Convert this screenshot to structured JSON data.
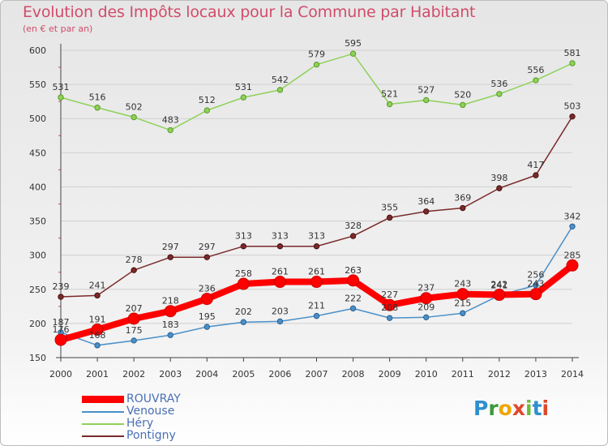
{
  "title": "Evolution des Impôts locaux pour la Commune par Habitant",
  "subtitle": "(en € et par an)",
  "logo": {
    "letters": [
      "P",
      "r",
      "o",
      "x",
      "i",
      "t",
      "i"
    ],
    "colors": [
      "#2f8fcf",
      "#3a9a3a",
      "#f0a500",
      "#e0472b",
      "#6dbb3c",
      "#2f8fcf",
      "#e0472b"
    ]
  },
  "chart_data": {
    "type": "line",
    "x": [
      "2000",
      "2001",
      "2002",
      "2003",
      "2004",
      "2005",
      "2006",
      "2007",
      "2008",
      "2009",
      "2010",
      "2011",
      "2012",
      "2013",
      "2014"
    ],
    "ylim": [
      150,
      600
    ],
    "yticks": [
      150,
      200,
      250,
      300,
      350,
      400,
      450,
      500,
      550,
      600
    ],
    "grid": "horizontal",
    "legend_position": "bottom-left",
    "series": [
      {
        "name": "ROUVRAY",
        "color": "#ff0000",
        "values": [
          176,
          191,
          207,
          218,
          236,
          258,
          261,
          261,
          263,
          227,
          237,
          243,
          242,
          243,
          285
        ],
        "labels": [
          "176",
          "191",
          "207",
          "218",
          "236",
          "258",
          "261",
          "261",
          "263",
          "227",
          "237",
          "243",
          "242",
          "243",
          "285"
        ]
      },
      {
        "name": "Venouse",
        "color": "#4a90c8",
        "values": [
          187,
          168,
          175,
          183,
          195,
          202,
          203,
          211,
          222,
          208,
          209,
          215,
          241,
          256,
          342
        ],
        "labels": [
          "187",
          "168",
          "175",
          "183",
          "195",
          "202",
          "203",
          "211",
          "222",
          "208",
          "209",
          "215",
          "241",
          "256",
          "342"
        ]
      },
      {
        "name": "Héry",
        "color": "#8ed158",
        "values": [
          531,
          516,
          502,
          483,
          512,
          531,
          542,
          579,
          595,
          521,
          527,
          520,
          536,
          556,
          581
        ],
        "labels": [
          "531",
          "516",
          "502",
          "483",
          "512",
          "531",
          "542",
          "579",
          "595",
          "521",
          "527",
          "520",
          "536",
          "556",
          "581"
        ]
      },
      {
        "name": "Pontigny",
        "color": "#7a2a2a",
        "values": [
          239,
          241,
          278,
          297,
          297,
          313,
          313,
          313,
          328,
          355,
          364,
          369,
          398,
          417,
          503
        ],
        "labels": [
          "239",
          "241",
          "278",
          "297",
          "297",
          "313",
          "313",
          "313",
          "328",
          "355",
          "364",
          "369",
          "398",
          "417",
          "503"
        ]
      }
    ]
  }
}
